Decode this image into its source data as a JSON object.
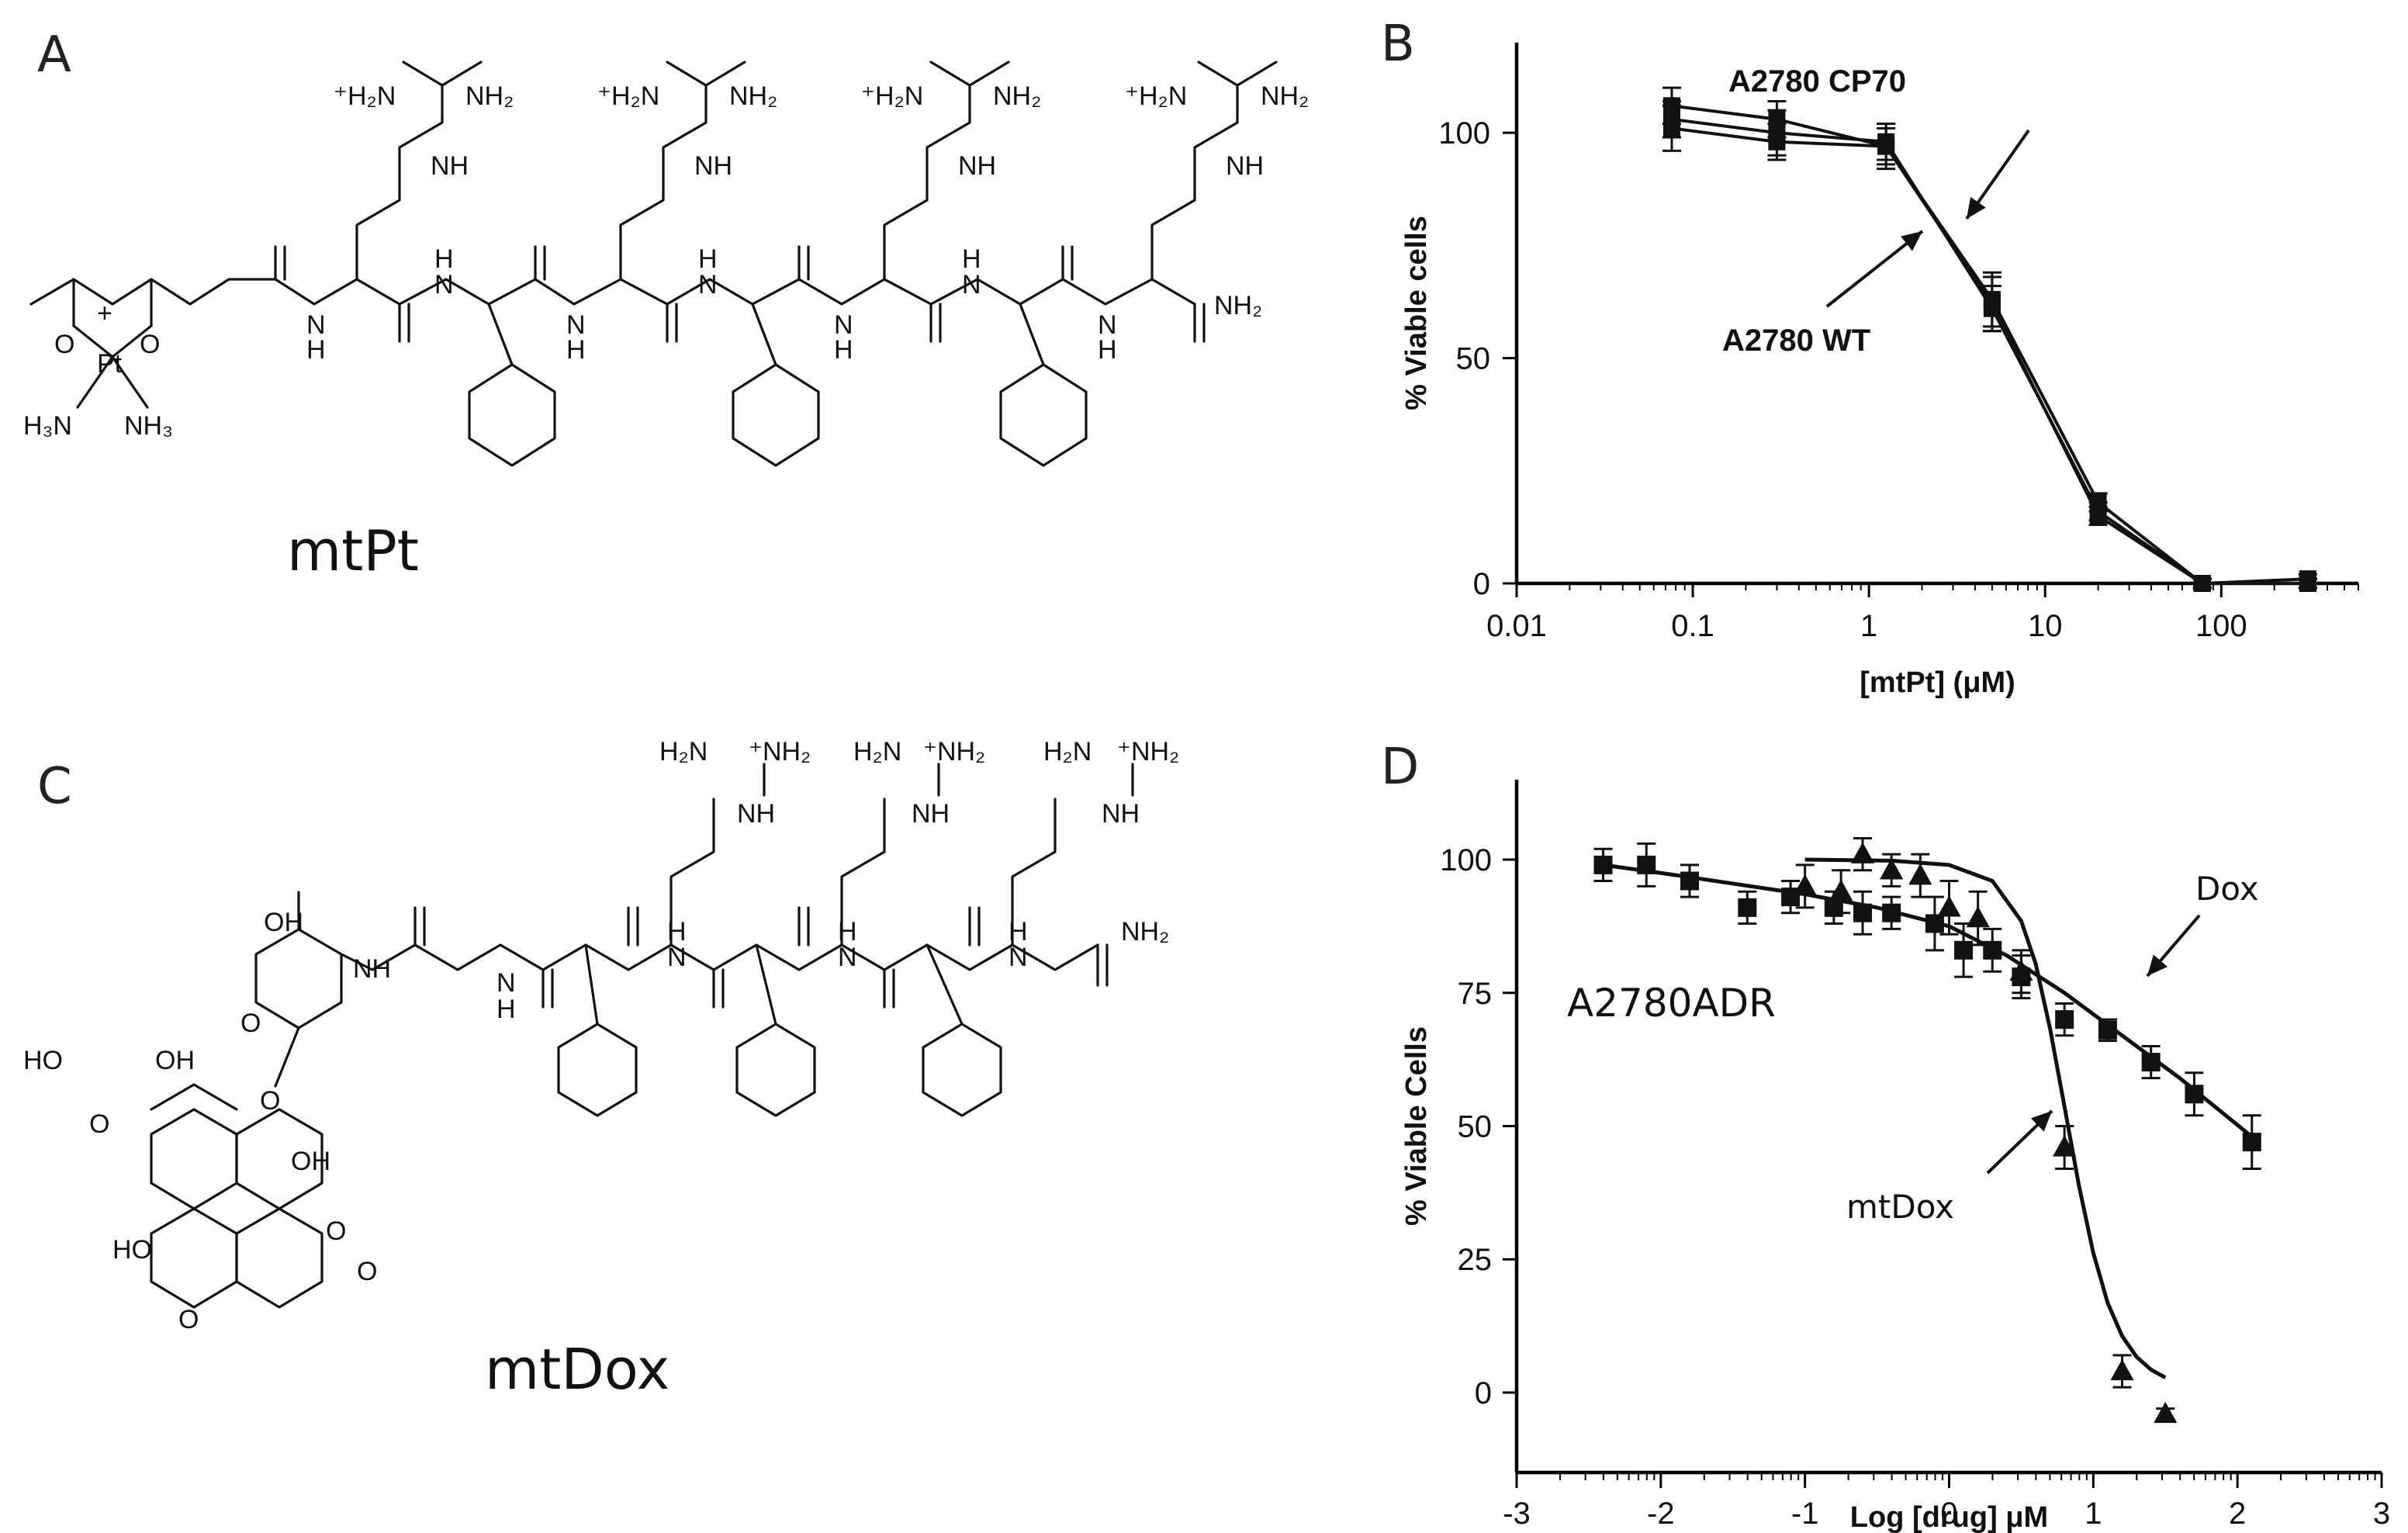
{
  "panels": {
    "a": {
      "letter": "A",
      "compound": "mtPt"
    },
    "b": {
      "letter": "B"
    },
    "c": {
      "letter": "C",
      "compound": "mtDox"
    },
    "d": {
      "letter": "D"
    }
  },
  "chart_data": [
    {
      "panel": "B",
      "type": "line",
      "xlabel": "[mtPt] (μM)",
      "ylabel": "% Viable cells",
      "xscale": "log",
      "xlim": [
        0.01,
        600
      ],
      "ylim": [
        0,
        120
      ],
      "x_ticks": [
        0.01,
        0.1,
        1,
        10,
        100
      ],
      "x_tick_labels": [
        "0.01",
        "0.1",
        "1",
        "10",
        "100"
      ],
      "y_ticks": [
        0,
        50,
        100
      ],
      "y_tick_labels": [
        "0",
        "50",
        "100"
      ],
      "grid": false,
      "x": [
        0.076,
        0.3,
        1.25,
        5,
        20,
        78,
        310
      ],
      "series": [
        {
          "name": "A2780 CP70",
          "values": [
            106,
            103,
            97,
            63,
            18,
            0,
            1
          ],
          "error": [
            4,
            4,
            5,
            6,
            2,
            1,
            1
          ]
        },
        {
          "name": "A2780 WT",
          "values": [
            103,
            100,
            98,
            61,
            16,
            0,
            0
          ],
          "error": [
            4,
            5,
            4,
            5,
            2,
            1,
            1
          ]
        },
        {
          "name": "",
          "values": [
            101,
            98,
            97,
            62,
            15,
            0,
            0
          ],
          "error": [
            5,
            4,
            4,
            6,
            2,
            1,
            1
          ]
        }
      ],
      "annotations": [
        {
          "text": "A2780 CP70",
          "points_to": "A2780 CP70"
        },
        {
          "text": "A2780 WT",
          "points_to": "A2780 WT"
        }
      ]
    },
    {
      "panel": "D",
      "type": "scatter",
      "title": "A2780ADR",
      "xlabel": "Log [drug] μM",
      "ylabel": "% Viable Cells",
      "xlim": [
        -3,
        3
      ],
      "ylim": [
        -15,
        115
      ],
      "x_ticks": [
        -3,
        -2,
        -1,
        0,
        1,
        2,
        3
      ],
      "x_tick_labels": [
        "-3",
        "-2",
        "-1",
        "0",
        "1",
        "2",
        "3"
      ],
      "y_ticks": [
        0,
        25,
        50,
        75,
        100
      ],
      "y_tick_labels": [
        "0",
        "25",
        "50",
        "75",
        "100"
      ],
      "grid": false,
      "series": [
        {
          "name": "Dox",
          "marker": "square",
          "x": [
            -2.4,
            -2.1,
            -1.8,
            -1.4,
            -1.1,
            -0.8,
            -0.6,
            -0.4,
            -0.1,
            0.1,
            0.3,
            0.5,
            0.8,
            1.1,
            1.4,
            1.7,
            2.1
          ],
          "y": [
            99,
            99,
            96,
            91,
            93,
            91,
            90,
            90,
            88,
            83,
            83,
            78,
            70,
            68,
            62,
            56,
            47
          ],
          "error": [
            3,
            4,
            3,
            3,
            3,
            3,
            4,
            3,
            5,
            5,
            4,
            4,
            3,
            2,
            3,
            4,
            5
          ],
          "fit": {
            "x": [
              -2.4,
              -2.0,
              -1.5,
              -1.0,
              -0.5,
              0.0,
              0.4,
              0.8,
              1.2,
              1.6,
              2.1
            ],
            "y": [
              99,
              97.5,
              95.5,
              93.5,
              91,
              87.5,
              82,
              75,
              67,
              59,
              48
            ]
          }
        },
        {
          "name": "mtDox",
          "marker": "triangle",
          "x": [
            -1.0,
            -0.75,
            -0.6,
            -0.4,
            -0.2,
            0.0,
            0.2,
            0.5,
            0.8,
            1.2,
            1.5
          ],
          "y": [
            95,
            94,
            101,
            98,
            97,
            91,
            89,
            79,
            46,
            4,
            -4
          ],
          "error": [
            4,
            4,
            3,
            3,
            4,
            5,
            5,
            4,
            4,
            3,
            1
          ],
          "fit": {
            "x": [
              -1.0,
              -0.4,
              0.0,
              0.3,
              0.5,
              0.6,
              0.7,
              0.8,
              0.9,
              1.0,
              1.1,
              1.2,
              1.3,
              1.4,
              1.5
            ],
            "y": [
              100,
              99.8,
              99,
              96,
              88.5,
              80.5,
              68.3,
              53.7,
              38.9,
              26.2,
              16.8,
              10.6,
              6.7,
              4.3,
              2.8
            ]
          }
        }
      ],
      "annotations": [
        {
          "text": "Dox",
          "points_to": "Dox"
        },
        {
          "text": "mtDox",
          "points_to": "mtDox"
        }
      ]
    }
  ]
}
